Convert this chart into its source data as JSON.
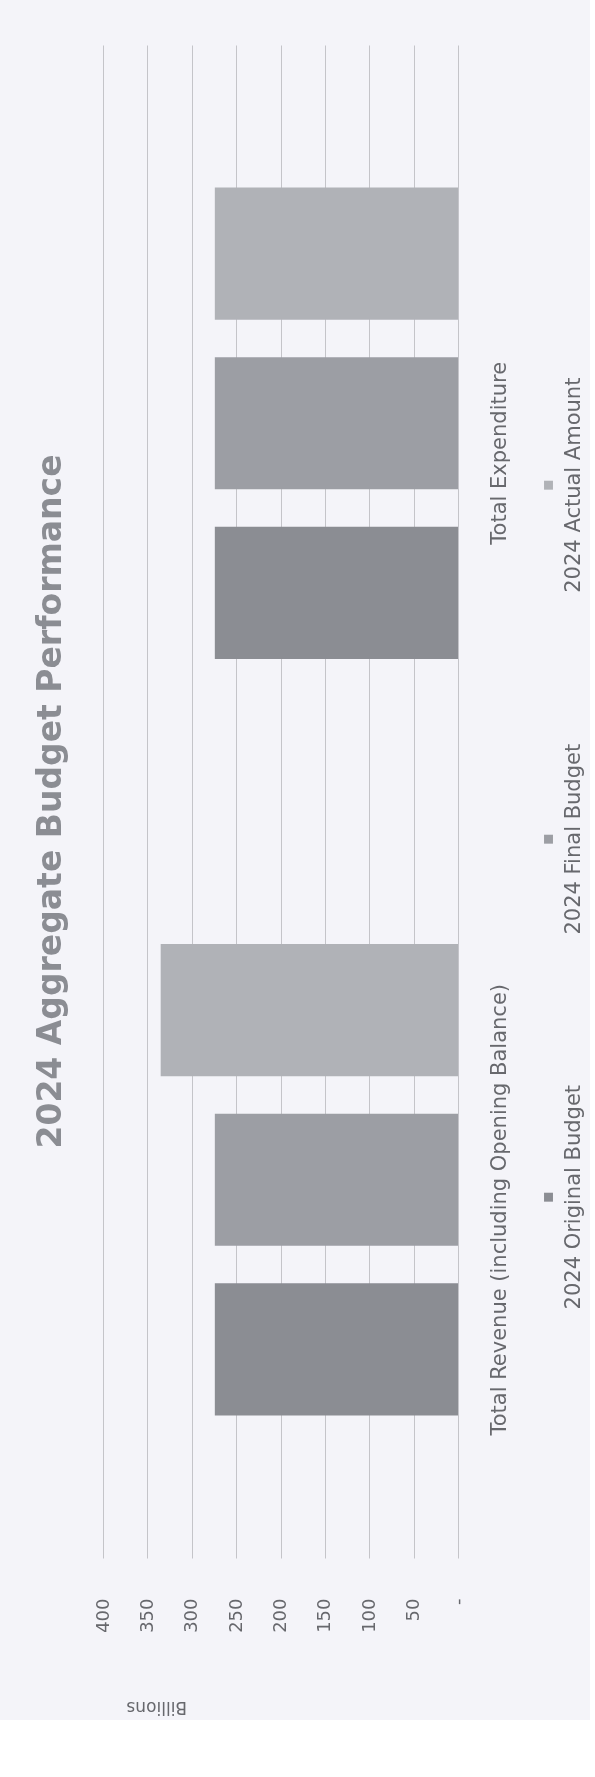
{
  "chart_data": {
    "type": "bar",
    "orientation": "horizontal",
    "title": "2024 Aggregate Budget Performance",
    "xlabel": "Billions",
    "categories": [
      "Total Expenditure",
      "Total Revenue (including Opening Balance)"
    ],
    "series": [
      {
        "name": "2024 Original Budget",
        "color": "#8b8d93",
        "values": [
          274,
          274
        ]
      },
      {
        "name": "2024 Final Budget",
        "color": "#9c9ea4",
        "values": [
          274,
          274
        ]
      },
      {
        "name": "2024 Actual Amount",
        "color": "#b0b2b7",
        "values": [
          274,
          335
        ]
      }
    ],
    "xlim": [
      400,
      0
    ],
    "xticks": [
      400,
      350,
      300,
      250,
      200,
      150,
      100,
      50,
      {
        "value": 0,
        "label": "-"
      }
    ],
    "grid": "x",
    "legend": "right"
  }
}
